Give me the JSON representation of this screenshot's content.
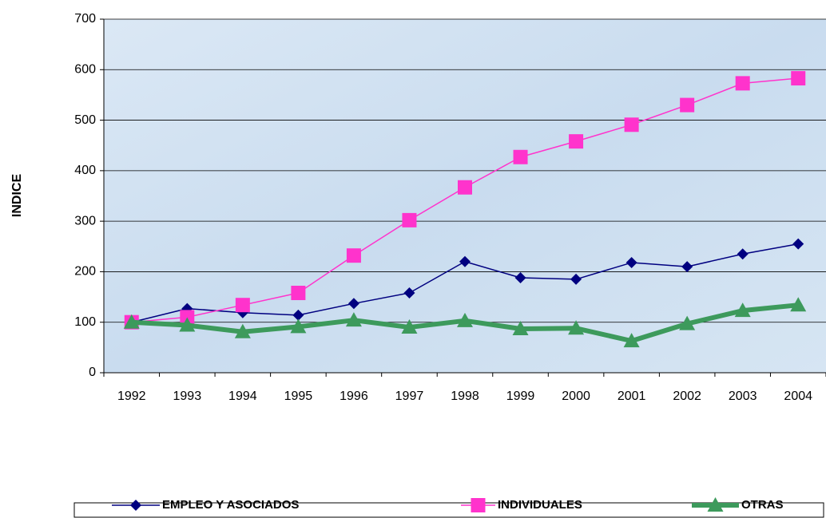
{
  "chart_data": {
    "type": "line",
    "y_label": "INDICE",
    "categories": [
      "1992",
      "1993",
      "1994",
      "1995",
      "1996",
      "1997",
      "1998",
      "1999",
      "2000",
      "2001",
      "2002",
      "2003",
      "2004"
    ],
    "series": [
      {
        "name": "EMPLEO Y ASOCIADOS",
        "color": "#000080",
        "marker": "diamond",
        "line_width": 1.5,
        "values": [
          100,
          127,
          119,
          114,
          137,
          158,
          220,
          188,
          185,
          218,
          210,
          235,
          255
        ]
      },
      {
        "name": "INDIVIDUALES",
        "color": "#ff33cc",
        "marker": "square",
        "line_width": 1.5,
        "values": [
          100,
          110,
          134,
          158,
          232,
          302,
          367,
          427,
          458,
          491,
          530,
          573,
          583
        ]
      },
      {
        "name": "OTRAS",
        "color": "#3d9a5c",
        "marker": "triangle",
        "line_width": 6,
        "values": [
          100,
          94,
          81,
          91,
          104,
          90,
          103,
          87,
          88,
          63,
          97,
          123,
          134
        ]
      }
    ],
    "ylim": [
      0,
      700
    ],
    "yticks": [
      0,
      100,
      200,
      300,
      400,
      500,
      600,
      700
    ],
    "grid": true,
    "legend": "bottom"
  }
}
